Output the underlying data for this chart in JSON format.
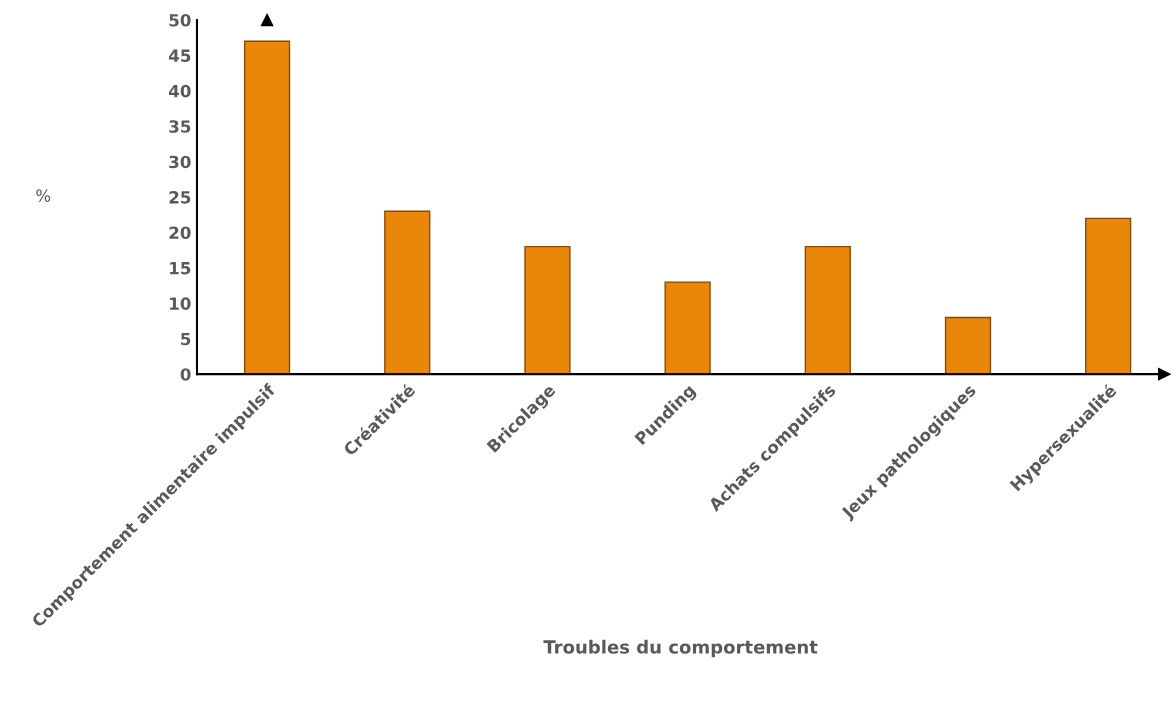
{
  "chart_data": {
    "type": "bar",
    "xlabel": "Troubles du comportement",
    "ylabel": "%",
    "categories": [
      "Comportement alimentaire impulsif",
      "Créativité",
      "Bricolage",
      "Punding",
      "Achats compulsifs",
      "Jeux pathologiques",
      "Hypersexualité"
    ],
    "values": [
      47,
      23,
      18,
      13,
      18,
      8,
      22
    ],
    "color": "#e8870a",
    "ylim": [
      0,
      50
    ],
    "yticks": [
      0,
      5,
      10,
      15,
      20,
      25,
      30,
      35,
      40,
      45,
      50
    ],
    "grid": false,
    "legend": false
  }
}
